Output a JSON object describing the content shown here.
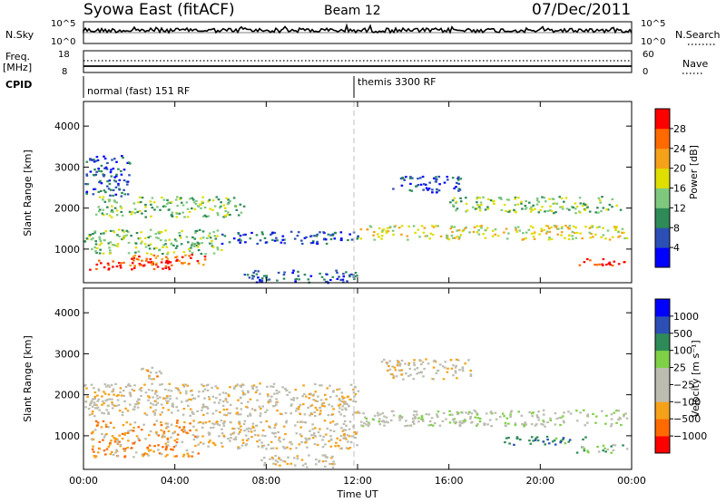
{
  "header": {
    "title": "Syowa East (fitACF)",
    "beam": "Beam 12",
    "date": "07/Dec/2011"
  },
  "top_strip": {
    "nsky_label": "N.Sky",
    "nsky_ticks": [
      "10^5",
      "10^0"
    ],
    "nsearch_label": "N.Search",
    "nsearch_ticks": [
      "10^5",
      "10^0"
    ],
    "freq_label_1": "Freq.",
    "freq_label_2": "[MHz]",
    "freq_ticks": [
      "18",
      "8"
    ],
    "nave_label": "Nave",
    "nave_ticks": [
      "60",
      "0"
    ],
    "cpid_label": "CPID",
    "cpid_segments": [
      {
        "label": "normal (fast) 151 RF",
        "start_hour": 0
      },
      {
        "label": "themis 3300 RF",
        "start_hour": 12
      }
    ]
  },
  "colors": {
    "power_scale": [
      "#0000ff",
      "#2b4fb5",
      "#2e8b57",
      "#7fc97f",
      "#dede00",
      "#f5a21a",
      "#ff6a00",
      "#ff0000"
    ],
    "velocity_scale": [
      "#ff0000",
      "#ff6a00",
      "#f5a21a",
      "#bcbcb0",
      "#bcbcb0",
      "#7fd047",
      "#2e8b57",
      "#2b4fb5",
      "#0000ff"
    ]
  },
  "chart_data": [
    {
      "type": "heatmap",
      "name": "power-panel",
      "ylabel": "Slant Range [km]",
      "xlim": [
        0,
        24
      ],
      "ylim": [
        180,
        4600
      ],
      "yticks": [
        "1000",
        "2000",
        "3000",
        "4000"
      ],
      "colorbar_label": "Power [dB]",
      "colorbar_ticks": [
        "4",
        "8",
        "12",
        "16",
        "20",
        "24",
        "28"
      ],
      "bands": [
        {
          "t0": 0.2,
          "t1": 4.0,
          "r0": 520,
          "r1": 760,
          "level": 7
        },
        {
          "t0": 2.0,
          "t1": 5.5,
          "r0": 620,
          "r1": 900,
          "level": 6
        },
        {
          "t0": 0.0,
          "t1": 6.0,
          "r0": 900,
          "r1": 1500,
          "level": 3
        },
        {
          "t0": 6.0,
          "t1": 12.0,
          "r0": 1150,
          "r1": 1450,
          "level": 1
        },
        {
          "t0": 0.5,
          "t1": 7.0,
          "r0": 1800,
          "r1": 2300,
          "level": 3
        },
        {
          "t0": 12.0,
          "t1": 23.8,
          "r0": 1250,
          "r1": 1600,
          "level": 4
        },
        {
          "t0": 13.5,
          "t1": 16.5,
          "r0": 2400,
          "r1": 2800,
          "level": 1
        },
        {
          "t0": 16.0,
          "t1": 23.5,
          "r0": 1900,
          "r1": 2300,
          "level": 3
        },
        {
          "t0": 7.0,
          "t1": 12.0,
          "r0": 200,
          "r1": 500,
          "level": 1
        },
        {
          "t0": 21.5,
          "t1": 23.8,
          "r0": 600,
          "r1": 780,
          "level": 7
        },
        {
          "t0": 0.0,
          "t1": 2.0,
          "r0": 2300,
          "r1": 3300,
          "level": 1
        }
      ]
    },
    {
      "type": "heatmap",
      "name": "velocity-panel",
      "ylabel": "Slant Range [km]",
      "xlabel": "Time UT",
      "xlim": [
        0,
        24
      ],
      "ylim": [
        180,
        4600
      ],
      "xticks": [
        "00:00",
        "04:00",
        "08:00",
        "12:00",
        "16:00",
        "20:00",
        "00:00"
      ],
      "yticks": [
        "1000",
        "2000",
        "3000",
        "4000"
      ],
      "colorbar_label": "Velocity [m s⁻¹]",
      "colorbar_ticks": [
        "1000",
        "500",
        "100",
        "25",
        "−25",
        "−100",
        "−500",
        "−1000"
      ],
      "bands": [
        {
          "t0": 0.3,
          "t1": 5.0,
          "r0": 500,
          "r1": 1400,
          "level": 2
        },
        {
          "t0": 0.0,
          "t1": 12.0,
          "r0": 1500,
          "r1": 2300,
          "level": 3
        },
        {
          "t0": 5.0,
          "t1": 12.0,
          "r0": 700,
          "r1": 1400,
          "level": 3
        },
        {
          "t0": 12.0,
          "t1": 23.8,
          "r0": 1250,
          "r1": 1650,
          "level": 4
        },
        {
          "t0": 13.0,
          "t1": 17.0,
          "r0": 2400,
          "r1": 2900,
          "level": 3
        },
        {
          "t0": 18.0,
          "t1": 22.0,
          "r0": 800,
          "r1": 1000,
          "level": 6
        },
        {
          "t0": 21.5,
          "t1": 23.8,
          "r0": 600,
          "r1": 800,
          "level": 5
        },
        {
          "t0": 2.5,
          "t1": 3.5,
          "r0": 2400,
          "r1": 2700,
          "level": 2
        },
        {
          "t0": 7.5,
          "t1": 11.0,
          "r0": 250,
          "r1": 550,
          "level": 3
        }
      ]
    }
  ]
}
